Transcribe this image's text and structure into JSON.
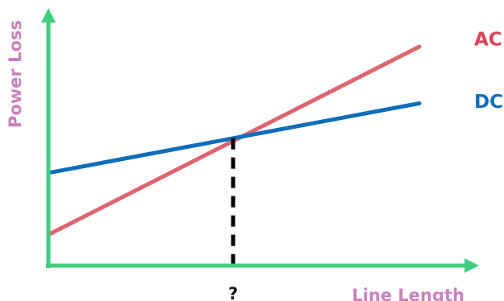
{
  "chart_data": {
    "type": "line",
    "title": "",
    "xlabel": "Line Length",
    "ylabel": "Power Loss",
    "x_tick_labels": [
      "?"
    ],
    "xlim": [
      0,
      100
    ],
    "ylim": [
      0,
      100
    ],
    "grid": false,
    "legend": "none (series labeled at line ends)",
    "series": [
      {
        "name": "AC",
        "color": "#e06470",
        "label_color": "#e0404f",
        "x": [
          0,
          100
        ],
        "y": [
          12,
          85
        ]
      },
      {
        "name": "DC",
        "color": "#0d6ebb",
        "label_color": "#0d6ebb",
        "x": [
          0,
          100
        ],
        "y": [
          36,
          63
        ]
      }
    ],
    "annotations": [
      {
        "type": "vertical-dashed-drop-line",
        "at_x": 49.8,
        "to_y": 49.5,
        "label": "?",
        "color": "#000000"
      }
    ],
    "colors": {
      "axis": "#3ecf7f",
      "axis_label": "#cc7fbf"
    }
  }
}
